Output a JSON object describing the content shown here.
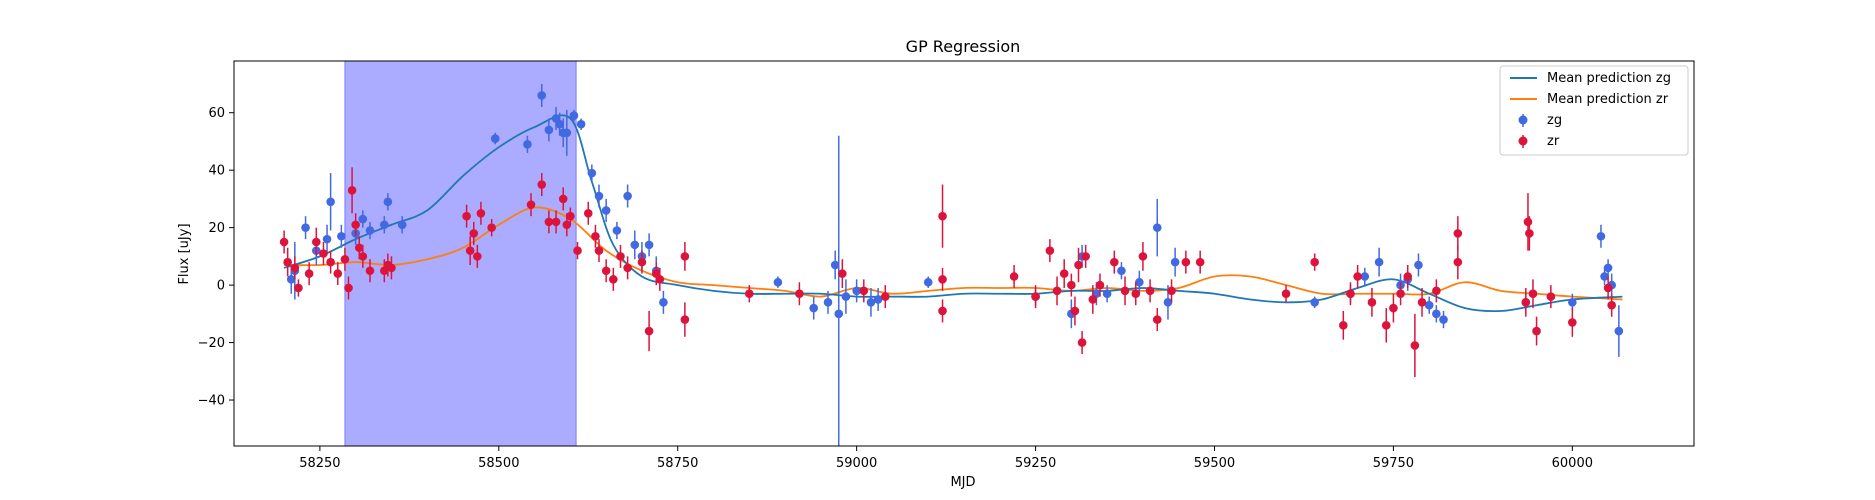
{
  "chart_data": {
    "type": "scatter",
    "title": "GP Regression",
    "xlabel": "MJD",
    "ylabel": "Flux [uJy]",
    "xlim": [
      58130,
      60170
    ],
    "ylim": [
      -56,
      78
    ],
    "xticks": [
      58250,
      58500,
      58750,
      59000,
      59250,
      59500,
      59750,
      60000
    ],
    "yticks": [
      -40,
      -20,
      0,
      20,
      40,
      60
    ],
    "grid": false,
    "legend": "top-right",
    "shaded_region": {
      "x0": 58285,
      "x1": 58608,
      "color": "#a6a6ff"
    },
    "colors": {
      "zg_line": "#1f77b4",
      "zr_line": "#ff7f0e",
      "zg_points": "#4169e1",
      "zr_points": "#dc143c"
    },
    "legend_entries": [
      "Mean prediction zg",
      "Mean prediction zr",
      "zg",
      "zr"
    ],
    "mean_zg": {
      "name": "Mean prediction zg",
      "x": [
        58200,
        58250,
        58300,
        58350,
        58400,
        58450,
        58500,
        58550,
        58600,
        58630,
        58660,
        58700,
        58750,
        58800,
        58850,
        58900,
        58950,
        59000,
        59050,
        59100,
        59150,
        59200,
        59250,
        59300,
        59350,
        59400,
        59450,
        59500,
        59550,
        59600,
        59650,
        59700,
        59750,
        59800,
        59850,
        59900,
        59950,
        60000,
        60070
      ],
      "y": [
        6,
        10,
        16,
        21,
        26,
        38,
        48,
        55,
        58,
        36,
        14,
        3,
        0,
        -2,
        -3,
        -3,
        -3,
        -4,
        -4,
        -4,
        -3,
        -3,
        -3,
        -2,
        -2,
        -1,
        -2,
        -3,
        -5,
        -6,
        -5,
        -1,
        2,
        -3,
        -8,
        -9,
        -7,
        -5,
        -4
      ]
    },
    "mean_zr": {
      "name": "Mean prediction zr",
      "x": [
        58200,
        58250,
        58300,
        58350,
        58400,
        58450,
        58500,
        58550,
        58600,
        58650,
        58700,
        58750,
        58800,
        58850,
        58900,
        58950,
        59000,
        59050,
        59100,
        59150,
        59200,
        59250,
        59300,
        59350,
        59400,
        59450,
        59500,
        59550,
        59600,
        59650,
        59700,
        59750,
        59800,
        59850,
        59900,
        59950,
        60000,
        60070
      ],
      "y": [
        7,
        7,
        8,
        7,
        9,
        13,
        21,
        27,
        23,
        12,
        5,
        1,
        0,
        -1,
        -2,
        -4,
        -1,
        -3,
        -2,
        -1,
        -1,
        -1,
        -2,
        -1,
        -2,
        -1,
        3,
        3,
        0,
        -3,
        -3,
        -3,
        -3,
        1,
        -2,
        -3,
        -4,
        -5
      ]
    },
    "zg": {
      "name": "zg",
      "x": [
        58210,
        58215,
        58230,
        58245,
        58260,
        58265,
        58280,
        58300,
        58310,
        58320,
        58340,
        58345,
        58365,
        58495,
        58540,
        58560,
        58570,
        58580,
        58585,
        58590,
        58595,
        58605,
        58615,
        58630,
        58640,
        58650,
        58665,
        58680,
        58690,
        58700,
        58710,
        58720,
        58730,
        58890,
        58940,
        58960,
        58970,
        58975,
        58985,
        59000,
        59020,
        59030,
        59100,
        59250,
        59300,
        59315,
        59335,
        59350,
        59370,
        59395,
        59420,
        59435,
        59445,
        59640,
        59690,
        59710,
        59730,
        59760,
        59770,
        59785,
        59800,
        59810,
        59820,
        59935,
        60000,
        60040,
        60045,
        60050,
        60055,
        60065
      ],
      "y": [
        2,
        5,
        20,
        12,
        16,
        29,
        17,
        18,
        23,
        19,
        21,
        29,
        21,
        51,
        49,
        66,
        54,
        58,
        56,
        53,
        53,
        59,
        56,
        39,
        31,
        26,
        19,
        31,
        14,
        10,
        14,
        5,
        -6,
        1,
        -8,
        -6,
        7,
        -10,
        -4,
        -2,
        -6,
        -5,
        1,
        -4,
        -10,
        10,
        -3,
        -3,
        5,
        1,
        20,
        -6,
        8,
        -6,
        -3,
        3,
        8,
        0,
        2,
        7,
        -7,
        -10,
        -12,
        -6,
        -6,
        17,
        3,
        6,
        0,
        -16
      ],
      "yerr": [
        5,
        10,
        4,
        5,
        5,
        10,
        4,
        4,
        3,
        3,
        3,
        3,
        3,
        2,
        3,
        4,
        4,
        4,
        4,
        5,
        8,
        2,
        2,
        3,
        4,
        4,
        3,
        4,
        5,
        5,
        4,
        5,
        4,
        2,
        4,
        4,
        5,
        62,
        6,
        4,
        5,
        4,
        2,
        3,
        5,
        4,
        4,
        3,
        3,
        4,
        10,
        6,
        5,
        2,
        3,
        3,
        5,
        4,
        4,
        4,
        3,
        3,
        3,
        3,
        3,
        4,
        3,
        3,
        4,
        9
      ]
    },
    "zr": {
      "name": "zr",
      "x": [
        58200,
        58205,
        58215,
        58220,
        58235,
        58245,
        58255,
        58265,
        58275,
        58285,
        58290,
        58295,
        58300,
        58305,
        58310,
        58320,
        58340,
        58345,
        58350,
        58455,
        58460,
        58465,
        58470,
        58475,
        58490,
        58545,
        58560,
        58570,
        58580,
        58590,
        58595,
        58600,
        58610,
        58625,
        58635,
        58640,
        58650,
        58660,
        58670,
        58680,
        58700,
        58710,
        58720,
        58725,
        58760,
        58760,
        58850,
        58920,
        58980,
        59010,
        59040,
        59120,
        59120,
        59120,
        59220,
        59250,
        59270,
        59280,
        59290,
        59300,
        59305,
        59310,
        59315,
        59320,
        59330,
        59340,
        59360,
        59375,
        59390,
        59400,
        59410,
        59420,
        59440,
        59460,
        59480,
        59600,
        59640,
        59680,
        59690,
        59700,
        59720,
        59740,
        59750,
        59760,
        59770,
        59780,
        59790,
        59810,
        59840,
        59840,
        59935,
        59938,
        59940,
        59945,
        59950,
        59970,
        60000,
        60050,
        60055
      ],
      "y": [
        15,
        8,
        6,
        -1,
        4,
        15,
        11,
        8,
        4,
        9,
        -1,
        33,
        21,
        13,
        10,
        5,
        5,
        7,
        6,
        24,
        12,
        18,
        10,
        25,
        20,
        28,
        35,
        22,
        22,
        30,
        21,
        24,
        12,
        25,
        17,
        12,
        5,
        2,
        10,
        6,
        8,
        -16,
        4,
        2,
        -12,
        10,
        -3,
        -3,
        4,
        -2,
        -4,
        24,
        2,
        -9,
        3,
        -4,
        12,
        -2,
        4,
        0,
        -9,
        7,
        -20,
        10,
        -5,
        0,
        8,
        -2,
        -3,
        10,
        -2,
        -12,
        -2,
        8,
        8,
        -3,
        8,
        -14,
        -3,
        3,
        -6,
        -14,
        -8,
        -3,
        3,
        -21,
        -6,
        -2,
        18,
        8,
        -6,
        22,
        18,
        -3,
        -16,
        -4,
        -13,
        -1,
        -7
      ],
      "yerr": [
        4,
        5,
        4,
        3,
        4,
        5,
        4,
        4,
        4,
        4,
        4,
        8,
        4,
        4,
        4,
        4,
        4,
        4,
        4,
        4,
        5,
        4,
        4,
        4,
        3,
        4,
        4,
        4,
        4,
        4,
        4,
        3,
        3,
        4,
        4,
        4,
        4,
        4,
        4,
        4,
        4,
        7,
        4,
        4,
        6,
        5,
        3,
        4,
        5,
        4,
        4,
        11,
        4,
        4,
        4,
        4,
        4,
        5,
        5,
        4,
        5,
        6,
        4,
        4,
        5,
        4,
        4,
        5,
        4,
        5,
        4,
        4,
        4,
        4,
        4,
        3,
        3,
        5,
        4,
        4,
        5,
        6,
        5,
        4,
        4,
        11,
        5,
        4,
        6,
        6,
        5,
        10,
        6,
        5,
        5,
        4,
        5,
        4,
        4
      ]
    }
  }
}
